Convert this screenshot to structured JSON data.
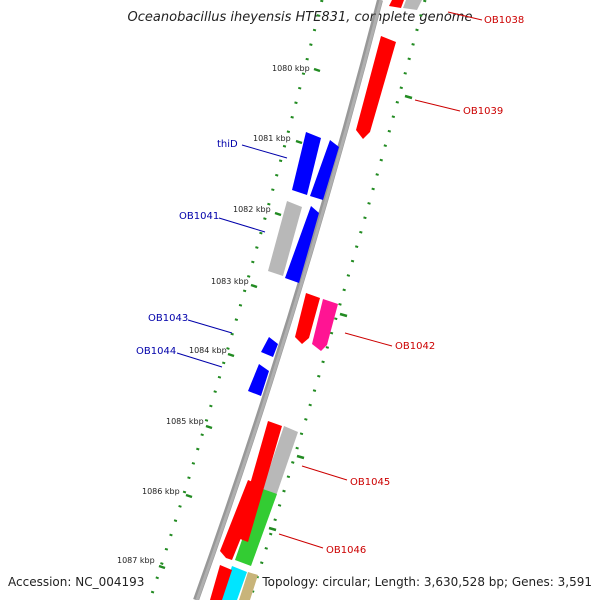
{
  "title": "Oceanobacillus iheyensis HTE831, complete genome",
  "accession": "Accession: NC_004193",
  "summary": "Topology: circular; Length: 3,630,528 bp; Genes: 3,591",
  "colors": {
    "backbone": "#808080",
    "tick": "#228b22",
    "red": "#ff0000",
    "blue": "#0000ff",
    "grey": "#b8b8b8",
    "pink": "#ff1493",
    "green": "#33cc33",
    "cyan": "#00e5ff",
    "tan": "#c8b47a",
    "label_right": "#cc0000",
    "label_left": "#0000aa"
  },
  "kbp_labels": [
    "1080 kbp",
    "1081 kbp",
    "1082 kbp",
    "1083 kbp",
    "1084 kbp",
    "1085 kbp",
    "1086 kbp",
    "1087 kbp"
  ],
  "gene_labels": {
    "OB1038": "OB1038",
    "OB1039": "OB1039",
    "thiD": "thiD",
    "OB1041": "OB1041",
    "OB1042": "OB1042",
    "OB1043": "OB1043",
    "OB1044": "OB1044",
    "OB1045": "OB1045",
    "OB1046": "OB1046"
  }
}
